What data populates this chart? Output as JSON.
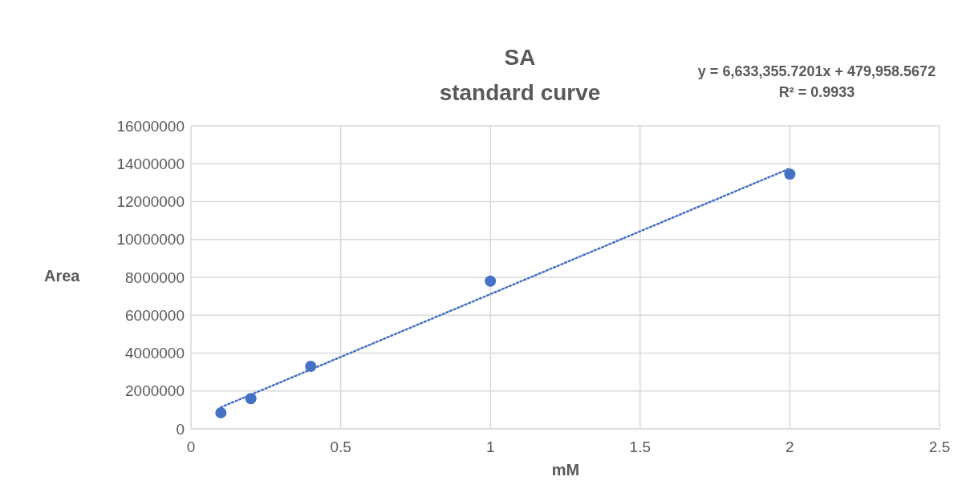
{
  "chart_data": {
    "type": "scatter",
    "title": "SA\nstandard curve",
    "xlabel": "mM",
    "ylabel": "Area",
    "series": [
      {
        "color": "#4472c4",
        "marker": "circle",
        "x": [
          0.1,
          0.2,
          0.4,
          1,
          2
        ],
        "values": [
          850000,
          1600000,
          3300000,
          7800000,
          13450000
        ]
      },
      {
        "type": "line",
        "color": "#4472c4",
        "marker": "none",
        "line_style": "dotted",
        "x": [
          0.1,
          2
        ],
        "values": [
          1140000,
          13750000
        ]
      }
    ],
    "xlim": [
      0,
      2.5
    ],
    "xticks": [
      0,
      0.5,
      1,
      1.5,
      2,
      2.5
    ],
    "ylim": [
      0,
      16000000
    ],
    "yticks": [
      0,
      2000000,
      4000000,
      6000000,
      8000000,
      10000000,
      12000000,
      14000000,
      16000000
    ],
    "grid": true,
    "legend": false,
    "annotations": [
      "y = 6,633,355.7201x + 479,958.5672\nR² = 0.9933"
    ]
  }
}
